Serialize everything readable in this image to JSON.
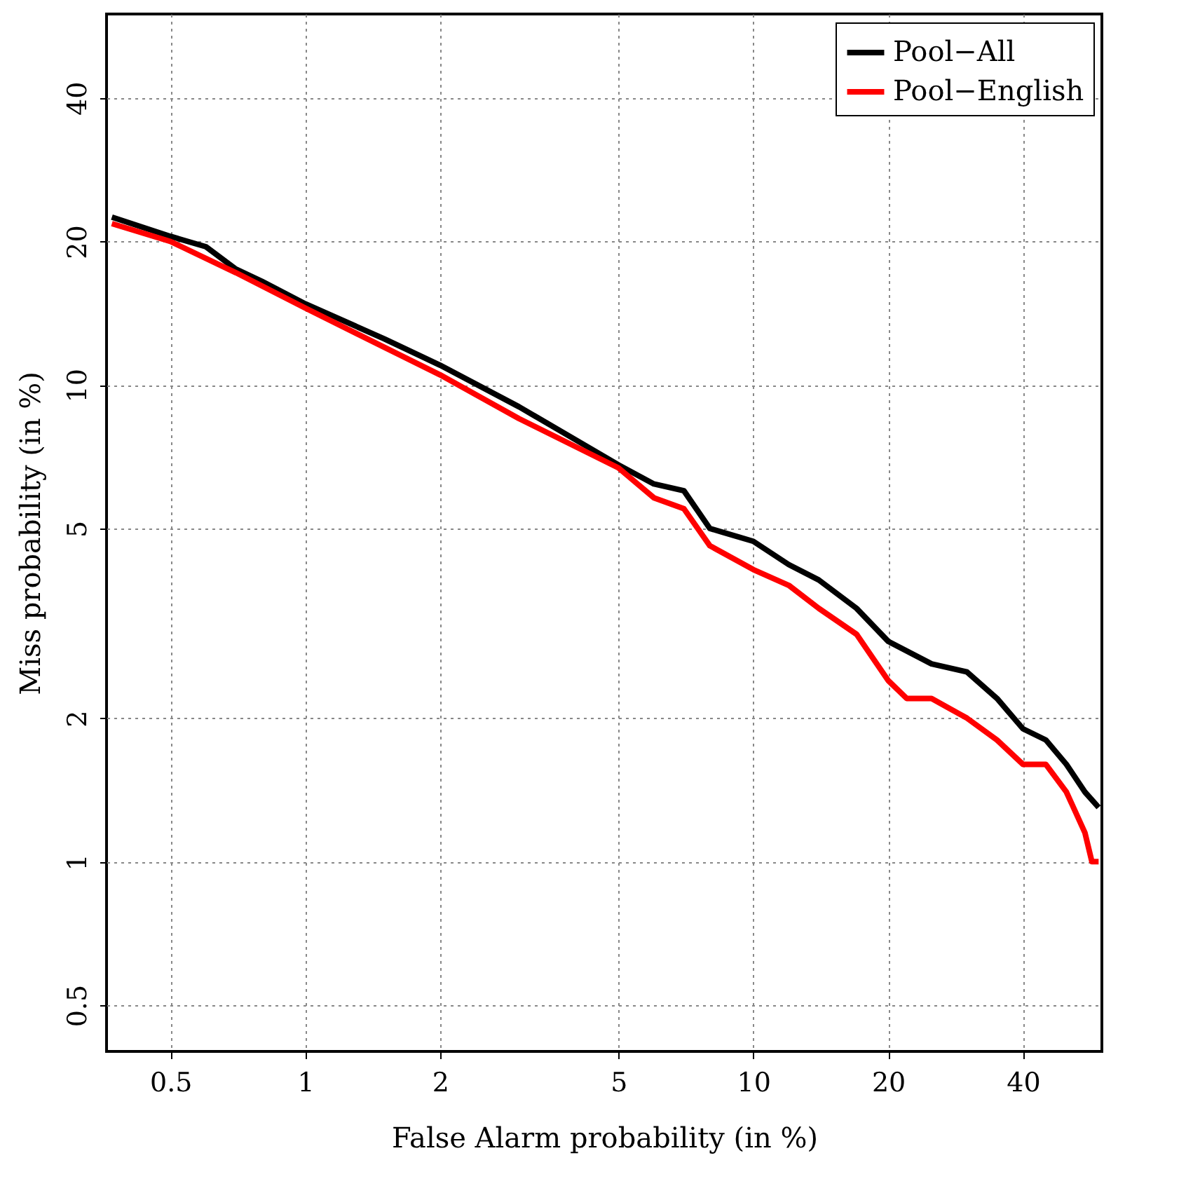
{
  "chart_data": {
    "type": "line",
    "xlabel": "False Alarm probability (in %)",
    "ylabel": "Miss probability (in %)",
    "xlim": [
      0.36,
      60
    ],
    "ylim": [
      0.4,
      60
    ],
    "log": "xy",
    "xticks": [
      0.5,
      1,
      2,
      5,
      10,
      20,
      40
    ],
    "yticks": [
      0.5,
      1,
      2,
      5,
      10,
      20,
      40
    ],
    "grid": true,
    "legend": "top right",
    "line_style": "solid",
    "marker": "none",
    "series": [
      {
        "name": "Pool−All",
        "color": "#000000",
        "x": [
          0.37,
          0.5,
          0.6,
          0.7,
          0.8,
          1,
          1.5,
          2,
          3,
          5,
          6,
          7,
          8,
          10,
          12,
          14,
          17,
          20,
          25,
          30,
          35,
          40,
          45,
          50,
          55,
          59
        ],
        "values": [
          22.5,
          20.5,
          19.5,
          17.5,
          16.5,
          14.8,
          12.5,
          11,
          9,
          6.8,
          6.2,
          6.0,
          5.0,
          4.7,
          4.2,
          3.9,
          3.4,
          2.9,
          2.6,
          2.5,
          2.2,
          1.9,
          1.8,
          1.6,
          1.4,
          1.3
        ]
      },
      {
        "name": "Pool−English",
        "color": "#ff0000",
        "x": [
          0.37,
          0.5,
          0.7,
          1,
          1.5,
          2,
          3,
          5,
          6,
          7,
          8,
          10,
          12,
          14,
          17,
          20,
          22,
          25,
          30,
          35,
          40,
          45,
          50,
          55,
          57,
          59
        ],
        "values": [
          21.8,
          20,
          17.2,
          14.5,
          12,
          10.5,
          8.5,
          6.7,
          5.8,
          5.5,
          4.6,
          4.1,
          3.8,
          3.4,
          3.0,
          2.4,
          2.2,
          2.2,
          2.0,
          1.8,
          1.6,
          1.6,
          1.4,
          1.15,
          1.0,
          1.0
        ]
      }
    ]
  }
}
